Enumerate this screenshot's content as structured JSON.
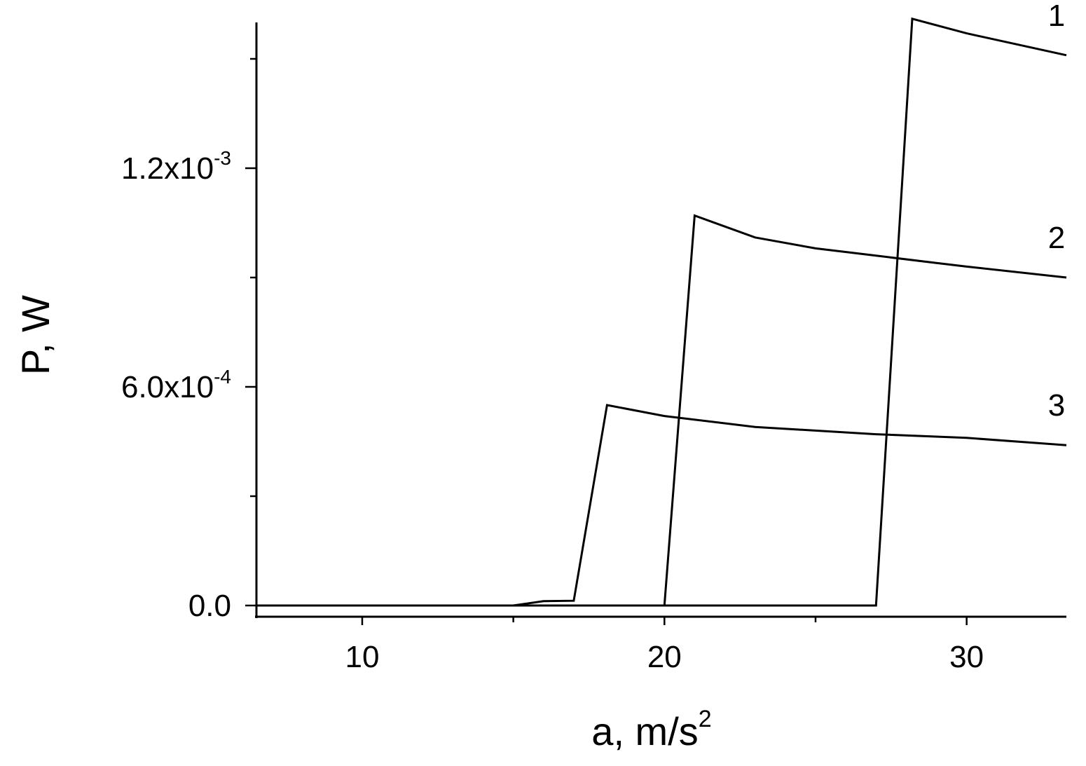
{
  "chart_data": {
    "type": "line",
    "xlabel": "a, m/s",
    "xlabel_sup": "2",
    "ylabel": "P, W",
    "xlim": [
      6.5,
      33.3
    ],
    "ylim": [
      0,
      0.0016
    ],
    "x_ticks": [
      {
        "value": 10,
        "label": "10"
      },
      {
        "value": 20,
        "label": "20"
      },
      {
        "value": 30,
        "label": "30"
      }
    ],
    "x_minor_ticks": [
      15,
      25
    ],
    "y_ticks": [
      {
        "value": 0,
        "mantissa": "0.0",
        "exponent": ""
      },
      {
        "value": 0.0006,
        "mantissa": "6.0x10",
        "exponent": "-4"
      },
      {
        "value": 0.0012,
        "mantissa": "1.2x10",
        "exponent": "-3"
      }
    ],
    "y_minor_ticks": [
      0.0003,
      0.0009,
      0.0015
    ],
    "series": [
      {
        "name": "1",
        "x": [
          6.5,
          27,
          28.2,
          30,
          33.3
        ],
        "y": [
          0,
          0,
          0.00161,
          0.00157,
          0.00151
        ]
      },
      {
        "name": "2",
        "x": [
          6.5,
          20,
          21,
          23,
          25,
          27,
          29,
          30,
          33.3
        ],
        "y": [
          0,
          0,
          0.00107,
          0.00101,
          0.00098,
          0.00096,
          0.00094,
          0.00093,
          0.0009
        ]
      },
      {
        "name": "3",
        "x": [
          6.5,
          15,
          16,
          17,
          18.1,
          20,
          23,
          27,
          30,
          33.3
        ],
        "y": [
          0,
          0,
          1.2e-05,
          1.3e-05,
          0.00055,
          0.00052,
          0.00049,
          0.00047,
          0.00046,
          0.00044
        ]
      }
    ],
    "grid": false,
    "legend": "curve labels at right end"
  }
}
